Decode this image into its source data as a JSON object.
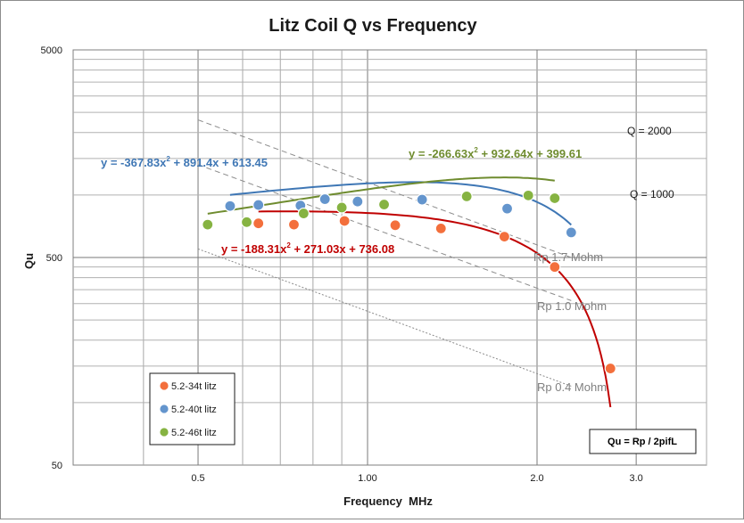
{
  "chart_data": {
    "type": "scatter",
    "title": "Litz Coil Q vs Frequency",
    "xlabel": "Frequency  MHz",
    "ylabel": "Qu",
    "x_scale": "log",
    "y_scale": "log",
    "xlim": [
      0.3,
      4.0
    ],
    "ylim": [
      50,
      5000
    ],
    "x_tick_labels": [
      {
        "value": 0.5,
        "label": "0.5"
      },
      {
        "value": 1.0,
        "label": "1.00"
      },
      {
        "value": 2.0,
        "label": "2.0"
      },
      {
        "value": 3.0,
        "label": "3.0"
      }
    ],
    "y_tick_labels": [
      {
        "value": 50,
        "label": "50"
      },
      {
        "value": 500,
        "label": "500"
      },
      {
        "value": 5000,
        "label": "5000"
      }
    ],
    "grid": true,
    "legend_position": "bottom-left",
    "series": [
      {
        "name": "5.2-34t litz",
        "color": "#f36f3c",
        "trend_color": "#c00000",
        "x": [
          0.64,
          0.74,
          0.91,
          1.12,
          1.35,
          1.75,
          2.15,
          2.7
        ],
        "y": [
          730,
          720,
          750,
          715,
          690,
          630,
          450,
          146
        ],
        "trendline": {
          "label": "y = -188.31x",
          "suffix": " + 271.03x + 736.08",
          "exponent": "2",
          "coefficients": [
            -188.31,
            271.03,
            736.08
          ],
          "x_range": [
            0.64,
            2.7
          ]
        }
      },
      {
        "name": "5.2-40t litz",
        "color": "#6495cd",
        "trend_color": "#3f77b5",
        "x": [
          0.57,
          0.64,
          0.76,
          0.84,
          0.96,
          1.25,
          1.77,
          2.3
        ],
        "y": [
          885,
          895,
          890,
          955,
          930,
          950,
          860,
          660
        ],
        "trendline": {
          "label": "y = -367.83x",
          "suffix": " + 891.4x + 613.45",
          "exponent": "2",
          "coefficients": [
            -367.83,
            891.4,
            613.45
          ],
          "x_range": [
            0.57,
            2.3
          ]
        }
      },
      {
        "name": "5.2-46t litz",
        "color": "#86b342",
        "trend_color": "#6f8c2f",
        "x": [
          0.52,
          0.61,
          0.77,
          0.9,
          1.07,
          1.5,
          1.93,
          2.15
        ],
        "y": [
          720,
          740,
          815,
          870,
          900,
          985,
          995,
          965
        ],
        "trendline": {
          "label": "y = -266.63x",
          "suffix": " + 932.64x + 399.61",
          "exponent": "2",
          "coefficients": [
            -266.63,
            932.64,
            399.61
          ],
          "x_range": [
            0.52,
            2.15
          ]
        }
      }
    ],
    "reference_lines": [
      {
        "label": "Rp 1.7 Mohm",
        "style": "dashed",
        "x": [
          0.5,
          2.3
        ],
        "y": [
          2300,
          500
        ]
      },
      {
        "label": "Rp 1.0 Mohm",
        "style": "dashed",
        "x": [
          0.5,
          2.3
        ],
        "y": [
          1400,
          310
        ]
      },
      {
        "label": "Rp 0.4 Mohm",
        "style": "dotted",
        "x": [
          0.5,
          2.3
        ],
        "y": [
          550,
          120
        ]
      }
    ],
    "annotations": [
      {
        "label": "Q = 2000",
        "y": 2000
      },
      {
        "label": "Q = 1000",
        "y": 1000
      },
      {
        "label": "Qu = Rp / 2pifL",
        "boxed": true
      }
    ]
  }
}
